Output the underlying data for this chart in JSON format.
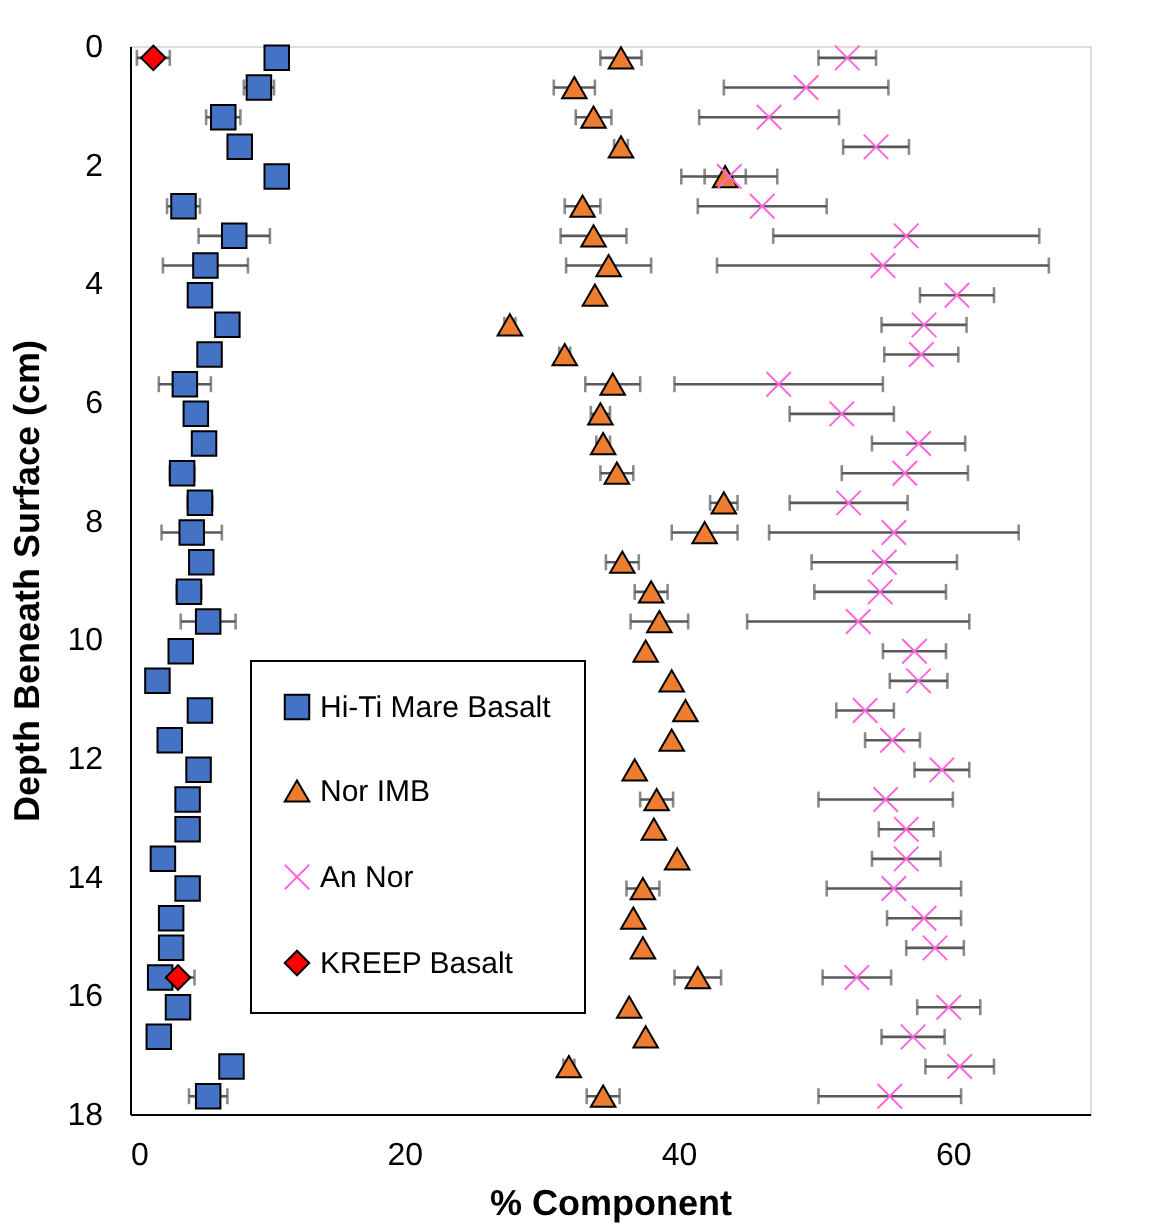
{
  "chart_data": {
    "type": "scatter",
    "xlabel": "% Component",
    "ylabel": "Depth Beneath Surface (cm)",
    "xlim": [
      0,
      70
    ],
    "xticks": [
      0,
      20,
      40,
      60
    ],
    "ylim": [
      18,
      0
    ],
    "yticks": [
      0,
      2,
      4,
      6,
      8,
      10,
      12,
      14,
      16,
      18
    ],
    "grid": false,
    "legend": "left",
    "series": [
      {
        "name": "Hi-Ti Mare Basalt",
        "color": "#4472c4",
        "marker": "square",
        "x": [
          10.7,
          9.4,
          6.8,
          8.0,
          10.7,
          3.9,
          7.6,
          5.5,
          5.1,
          7.1,
          5.8,
          4.0,
          4.8,
          5.4,
          3.8,
          5.1,
          4.5,
          5.2,
          4.3,
          5.7,
          3.7,
          2.0,
          5.1,
          2.9,
          5.0,
          4.2,
          4.2,
          2.4,
          4.2,
          3.0,
          3.0,
          2.2,
          3.5,
          2.1,
          7.4,
          5.7
        ],
        "values": [
          0.2,
          0.7,
          1.2,
          1.7,
          2.2,
          2.7,
          3.2,
          3.7,
          4.2,
          4.7,
          5.2,
          5.7,
          6.2,
          6.7,
          7.2,
          7.7,
          8.2,
          8.7,
          9.2,
          9.7,
          10.2,
          10.7,
          11.2,
          11.7,
          12.2,
          12.7,
          13.2,
          13.7,
          14.2,
          14.7,
          15.2,
          15.7,
          16.2,
          16.7,
          17.2,
          17.7
        ],
        "xerrors": [
          null,
          1.1,
          1.25,
          null,
          null,
          1.2,
          2.6,
          3.1,
          null,
          null,
          null,
          1.9,
          null,
          null,
          0.9,
          0.9,
          2.2,
          0.8,
          0.9,
          2.0,
          null,
          null,
          null,
          null,
          null,
          0.8,
          null,
          null,
          0.8,
          null,
          null,
          null,
          null,
          null,
          null,
          1.4
        ]
      },
      {
        "name": "Nor IMB",
        "color": "#ed7d31",
        "marker": "triangle",
        "x": [
          35.8,
          32.4,
          33.8,
          35.8,
          43.4,
          33.0,
          33.8,
          34.9,
          33.9,
          27.7,
          31.7,
          35.2,
          34.3,
          34.5,
          35.5,
          43.3,
          41.9,
          35.9,
          38.0,
          38.6,
          37.6,
          39.5,
          40.5,
          39.5,
          36.8,
          38.4,
          38.2,
          39.9,
          37.4,
          36.7,
          37.4,
          41.4,
          36.4,
          37.6,
          32.0,
          34.5
        ],
        "values": [
          0.2,
          0.7,
          1.2,
          1.7,
          2.2,
          2.7,
          3.2,
          3.7,
          4.2,
          4.7,
          5.2,
          5.7,
          6.2,
          6.7,
          7.2,
          7.7,
          8.2,
          8.7,
          9.2,
          9.7,
          10.2,
          10.7,
          11.2,
          11.7,
          12.2,
          12.7,
          13.2,
          13.7,
          14.2,
          14.7,
          15.2,
          15.7,
          16.2,
          16.7,
          17.2,
          17.7
        ],
        "xerrors": [
          1.5,
          1.5,
          1.3,
          0.5,
          1.5,
          1.3,
          2.4,
          3.1,
          null,
          0.4,
          0.4,
          2.0,
          0.7,
          0.5,
          1.2,
          1.0,
          2.4,
          1.2,
          1.2,
          2.1,
          null,
          null,
          null,
          null,
          null,
          1.2,
          null,
          null,
          1.2,
          null,
          null,
          1.7,
          null,
          null,
          0.4,
          1.2
        ]
      },
      {
        "name": "An Nor",
        "color": "#ff66dd",
        "marker": "cross",
        "x": [
          52.3,
          49.3,
          46.6,
          54.4,
          43.7,
          46.1,
          56.6,
          54.9,
          60.3,
          57.9,
          57.7,
          47.3,
          51.9,
          57.5,
          56.5,
          52.4,
          55.7,
          55.0,
          54.7,
          53.1,
          57.2,
          57.5,
          53.6,
          55.6,
          59.2,
          55.1,
          56.6,
          56.6,
          55.7,
          57.9,
          58.7,
          53.0,
          59.7,
          57.1,
          60.5,
          55.4
        ],
        "values": [
          0.2,
          0.7,
          1.2,
          1.7,
          2.2,
          2.7,
          3.2,
          3.7,
          4.2,
          4.7,
          5.2,
          5.7,
          6.2,
          6.7,
          7.2,
          7.7,
          8.2,
          8.7,
          9.2,
          9.7,
          10.2,
          10.7,
          11.2,
          11.7,
          12.2,
          12.7,
          13.2,
          13.7,
          14.2,
          14.7,
          15.2,
          15.7,
          16.2,
          16.7,
          17.2,
          17.7
        ],
        "xerrors": [
          2.1,
          6.0,
          5.1,
          2.4,
          3.5,
          4.7,
          9.7,
          12.1,
          2.7,
          3.1,
          2.7,
          7.6,
          3.8,
          3.4,
          4.6,
          4.3,
          9.1,
          5.3,
          4.8,
          8.1,
          2.3,
          2.1,
          2.1,
          2.0,
          2.0,
          4.9,
          2.0,
          2.5,
          4.9,
          2.7,
          2.1,
          2.5,
          2.3,
          2.3,
          2.5,
          5.2
        ]
      },
      {
        "name": "KREEP Basalt",
        "color": "#ff0000",
        "marker": "diamond",
        "x": [
          1.7,
          3.5
        ],
        "values": [
          0.2,
          15.7
        ],
        "xerrors": [
          1.2,
          1.2
        ]
      }
    ]
  }
}
